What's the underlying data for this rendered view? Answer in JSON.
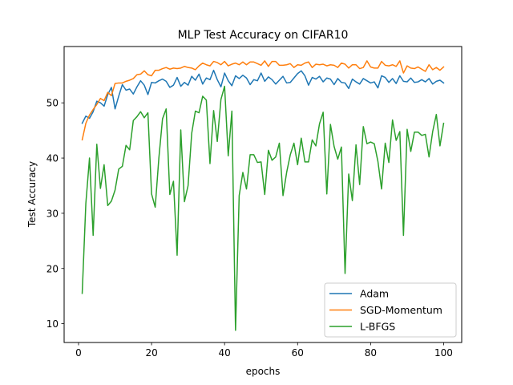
{
  "chart_data": {
    "type": "line",
    "title": "MLP Test Accuracy on CIFAR10",
    "xlabel": "epochs",
    "ylabel": "Test Accuracy",
    "xlim": [
      -3.95,
      104.95
    ],
    "ylim": [
      6.6,
      60.2
    ],
    "xticks": [
      0,
      20,
      40,
      60,
      80,
      100
    ],
    "yticks": [
      10,
      20,
      30,
      40,
      50
    ],
    "grid": false,
    "legend_position": "lower-right",
    "x": [
      1,
      2,
      3,
      4,
      5,
      6,
      7,
      8,
      9,
      10,
      11,
      12,
      13,
      14,
      15,
      16,
      17,
      18,
      19,
      20,
      21,
      22,
      23,
      24,
      25,
      26,
      27,
      28,
      29,
      30,
      31,
      32,
      33,
      34,
      35,
      36,
      37,
      38,
      39,
      40,
      41,
      42,
      43,
      44,
      45,
      46,
      47,
      48,
      49,
      50,
      51,
      52,
      53,
      54,
      55,
      56,
      57,
      58,
      59,
      60,
      61,
      62,
      63,
      64,
      65,
      66,
      67,
      68,
      69,
      70,
      71,
      72,
      73,
      74,
      75,
      76,
      77,
      78,
      79,
      80,
      81,
      82,
      83,
      84,
      85,
      86,
      87,
      88,
      89,
      90,
      91,
      92,
      93,
      94,
      95,
      96,
      97,
      98,
      99,
      100
    ],
    "series": [
      {
        "name": "Adam",
        "color": "#1f77b4",
        "values": [
          46.3,
          47.6,
          47.2,
          48.4,
          50.3,
          50.0,
          49.4,
          51.5,
          52.8,
          48.9,
          51.2,
          53.3,
          52.3,
          52.5,
          51.6,
          52.9,
          54.0,
          53.2,
          51.5,
          53.7,
          53.6,
          54.0,
          54.3,
          53.9,
          52.8,
          53.2,
          54.6,
          53.0,
          53.7,
          53.2,
          54.8,
          54.1,
          55.2,
          53.4,
          54.5,
          54.2,
          55.9,
          54.2,
          52.9,
          55.4,
          54.0,
          53.1,
          54.9,
          54.4,
          55.0,
          54.5,
          53.3,
          54.2,
          54.0,
          55.4,
          53.9,
          54.7,
          54.2,
          53.4,
          54.1,
          54.8,
          53.6,
          53.7,
          54.5,
          55.3,
          55.8,
          54.9,
          53.2,
          54.6,
          54.3,
          54.8,
          53.8,
          54.5,
          54.3,
          53.3,
          54.4,
          53.7,
          53.6,
          52.6,
          54.3,
          53.8,
          53.4,
          54.4,
          54.0,
          53.6,
          53.8,
          52.7,
          54.9,
          54.6,
          53.7,
          54.4,
          53.5,
          54.9,
          53.9,
          53.8,
          54.5,
          53.7,
          53.8,
          54.2,
          53.8,
          54.4,
          53.4,
          53.9,
          54.1,
          53.6
        ]
      },
      {
        "name": "SGD-Momentum",
        "color": "#ff7f0e",
        "values": [
          43.3,
          46.3,
          47.8,
          48.8,
          49.7,
          50.8,
          50.4,
          51.9,
          51.3,
          53.5,
          53.6,
          53.6,
          53.9,
          54.1,
          54.4,
          55.1,
          55.2,
          55.8,
          55.1,
          54.9,
          55.9,
          55.9,
          56.2,
          56.4,
          56.1,
          56.3,
          56.2,
          56.3,
          56.6,
          56.4,
          56.3,
          56.0,
          56.7,
          57.2,
          56.9,
          56.7,
          57.5,
          57.3,
          56.9,
          57.5,
          56.7,
          57.0,
          57.2,
          56.9,
          57.4,
          56.9,
          57.4,
          57.4,
          57.1,
          56.8,
          57.6,
          56.6,
          57.5,
          57.5,
          56.8,
          56.8,
          56.9,
          57.1,
          56.4,
          56.9,
          56.8,
          57.2,
          57.4,
          56.4,
          57.0,
          56.9,
          57.0,
          56.7,
          56.9,
          56.8,
          56.4,
          57.2,
          57.0,
          56.3,
          56.9,
          56.9,
          56.2,
          56.4,
          57.6,
          56.5,
          56.3,
          56.3,
          57.5,
          56.8,
          56.7,
          56.9,
          56.6,
          57.6,
          55.4,
          56.7,
          56.3,
          56.2,
          56.5,
          56.1,
          55.7,
          56.9,
          56.0,
          56.4,
          55.9,
          56.5
        ]
      },
      {
        "name": "L-BFGS",
        "color": "#2ca02c",
        "values": [
          15.5,
          31.8,
          40.0,
          26.0,
          42.5,
          34.5,
          38.8,
          31.4,
          32.2,
          34.2,
          38.0,
          38.5,
          42.3,
          41.5,
          46.8,
          47.5,
          48.4,
          47.3,
          48.2,
          33.5,
          31.1,
          40.0,
          47.1,
          48.9,
          33.4,
          35.8,
          22.4,
          45.1,
          32.1,
          35.0,
          44.5,
          48.5,
          48.2,
          51.2,
          50.5,
          39.0,
          48.6,
          43.0,
          50.6,
          53.0,
          40.4,
          48.5,
          8.8,
          33.2,
          37.4,
          34.4,
          40.6,
          40.6,
          39.2,
          39.3,
          33.4,
          41.4,
          39.6,
          40.2,
          42.7,
          33.2,
          37.4,
          40.6,
          42.7,
          38.8,
          43.6,
          39.3,
          39.3,
          43.3,
          42.2,
          46.2,
          48.3,
          33.5,
          46.1,
          42.1,
          39.8,
          42.0,
          19.1,
          37.1,
          32.3,
          42.4,
          35.2,
          45.7,
          42.6,
          42.9,
          42.6,
          39.4,
          34.4,
          42.7,
          39.2,
          46.9,
          43.2,
          44.8,
          26.0,
          45.2,
          41.2,
          44.7,
          44.7,
          44.1,
          44.3,
          40.2,
          44.8,
          47.9,
          42.2,
          46.3
        ]
      }
    ]
  }
}
